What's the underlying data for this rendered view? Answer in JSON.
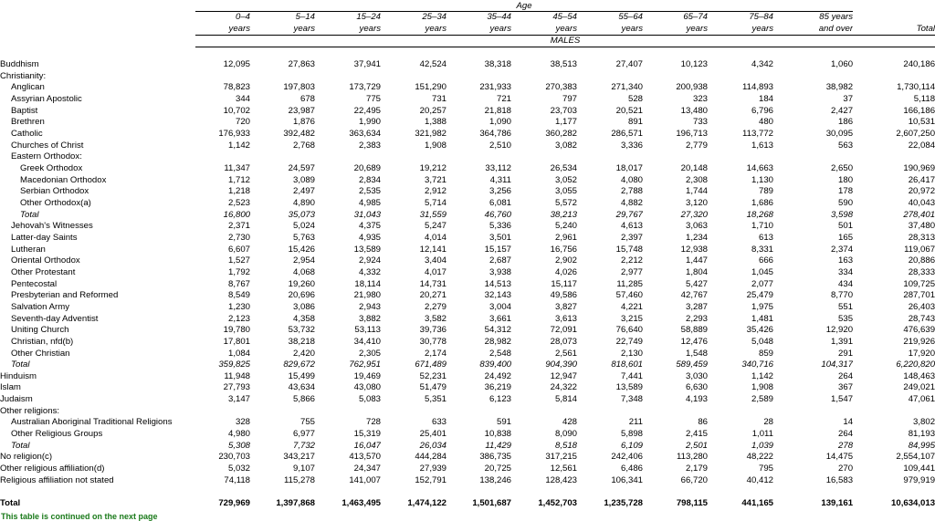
{
  "header": {
    "age_label": "Age",
    "males_label": "MALES",
    "columns": [
      {
        "line1": "0–4",
        "line2": "years"
      },
      {
        "line1": "5–14",
        "line2": "years"
      },
      {
        "line1": "15–24",
        "line2": "years"
      },
      {
        "line1": "25–34",
        "line2": "years"
      },
      {
        "line1": "35–44",
        "line2": "years"
      },
      {
        "line1": "45–54",
        "line2": "years"
      },
      {
        "line1": "55–64",
        "line2": "years"
      },
      {
        "line1": "65–74",
        "line2": "years"
      },
      {
        "line1": "75–84",
        "line2": "years"
      },
      {
        "line1": "85 years",
        "line2": "and over"
      },
      {
        "line1": "",
        "line2": "Total"
      }
    ]
  },
  "rows": [
    {
      "label": "Buddhism",
      "indent": 0,
      "style": "normal",
      "values": [
        "12,095",
        "27,863",
        "37,941",
        "42,524",
        "38,318",
        "38,513",
        "27,407",
        "10,123",
        "4,342",
        "1,060",
        "240,186"
      ]
    },
    {
      "label": "Christianity:",
      "indent": 0,
      "style": "normal",
      "values": [
        "",
        "",
        "",
        "",
        "",
        "",
        "",
        "",
        "",
        "",
        ""
      ]
    },
    {
      "label": "Anglican",
      "indent": 1,
      "style": "normal",
      "values": [
        "78,823",
        "197,803",
        "173,729",
        "151,290",
        "231,933",
        "270,383",
        "271,340",
        "200,938",
        "114,893",
        "38,982",
        "1,730,114"
      ]
    },
    {
      "label": "Assyrian Apostolic",
      "indent": 1,
      "style": "normal",
      "values": [
        "344",
        "678",
        "775",
        "731",
        "721",
        "797",
        "528",
        "323",
        "184",
        "37",
        "5,118"
      ]
    },
    {
      "label": "Baptist",
      "indent": 1,
      "style": "normal",
      "values": [
        "10,702",
        "23,987",
        "22,495",
        "20,257",
        "21,818",
        "23,703",
        "20,521",
        "13,480",
        "6,796",
        "2,427",
        "166,186"
      ]
    },
    {
      "label": "Brethren",
      "indent": 1,
      "style": "normal",
      "values": [
        "720",
        "1,876",
        "1,990",
        "1,388",
        "1,090",
        "1,177",
        "891",
        "733",
        "480",
        "186",
        "10,531"
      ]
    },
    {
      "label": "Catholic",
      "indent": 1,
      "style": "normal",
      "values": [
        "176,933",
        "392,482",
        "363,634",
        "321,982",
        "364,786",
        "360,282",
        "286,571",
        "196,713",
        "113,772",
        "30,095",
        "2,607,250"
      ]
    },
    {
      "label": "Churches of Christ",
      "indent": 1,
      "style": "normal",
      "values": [
        "1,142",
        "2,768",
        "2,383",
        "1,908",
        "2,510",
        "3,082",
        "3,336",
        "2,779",
        "1,613",
        "563",
        "22,084"
      ]
    },
    {
      "label": "Eastern Orthodox:",
      "indent": 1,
      "style": "normal",
      "values": [
        "",
        "",
        "",
        "",
        "",
        "",
        "",
        "",
        "",
        "",
        ""
      ]
    },
    {
      "label": "Greek Orthodox",
      "indent": 2,
      "style": "normal",
      "values": [
        "11,347",
        "24,597",
        "20,689",
        "19,212",
        "33,112",
        "26,534",
        "18,017",
        "20,148",
        "14,663",
        "2,650",
        "190,969"
      ]
    },
    {
      "label": "Macedonian Orthodox",
      "indent": 2,
      "style": "normal",
      "values": [
        "1,712",
        "3,089",
        "2,834",
        "3,721",
        "4,311",
        "3,052",
        "4,080",
        "2,308",
        "1,130",
        "180",
        "26,417"
      ]
    },
    {
      "label": "Serbian Orthodox",
      "indent": 2,
      "style": "normal",
      "values": [
        "1,218",
        "2,497",
        "2,535",
        "2,912",
        "3,256",
        "3,055",
        "2,788",
        "1,744",
        "789",
        "178",
        "20,972"
      ]
    },
    {
      "label": "Other Orthodox(a)",
      "indent": 2,
      "style": "normal",
      "values": [
        "2,523",
        "4,890",
        "4,985",
        "5,714",
        "6,081",
        "5,572",
        "4,882",
        "3,120",
        "1,686",
        "590",
        "40,043"
      ]
    },
    {
      "label": "Total",
      "indent": 2,
      "style": "italic",
      "values": [
        "16,800",
        "35,073",
        "31,043",
        "31,559",
        "46,760",
        "38,213",
        "29,767",
        "27,320",
        "18,268",
        "3,598",
        "278,401"
      ]
    },
    {
      "label": "Jehovah's Witnesses",
      "indent": 1,
      "style": "normal",
      "values": [
        "2,371",
        "5,024",
        "4,375",
        "5,247",
        "5,336",
        "5,240",
        "4,613",
        "3,063",
        "1,710",
        "501",
        "37,480"
      ]
    },
    {
      "label": "Latter-day Saints",
      "indent": 1,
      "style": "normal",
      "values": [
        "2,730",
        "5,763",
        "4,935",
        "4,014",
        "3,501",
        "2,961",
        "2,397",
        "1,234",
        "613",
        "165",
        "28,313"
      ]
    },
    {
      "label": "Lutheran",
      "indent": 1,
      "style": "normal",
      "values": [
        "6,607",
        "15,426",
        "13,589",
        "12,141",
        "15,157",
        "16,756",
        "15,748",
        "12,938",
        "8,331",
        "2,374",
        "119,067"
      ]
    },
    {
      "label": "Oriental Orthodox",
      "indent": 1,
      "style": "normal",
      "values": [
        "1,527",
        "2,954",
        "2,924",
        "3,404",
        "2,687",
        "2,902",
        "2,212",
        "1,447",
        "666",
        "163",
        "20,886"
      ]
    },
    {
      "label": "Other Protestant",
      "indent": 1,
      "style": "normal",
      "values": [
        "1,792",
        "4,068",
        "4,332",
        "4,017",
        "3,938",
        "4,026",
        "2,977",
        "1,804",
        "1,045",
        "334",
        "28,333"
      ]
    },
    {
      "label": "Pentecostal",
      "indent": 1,
      "style": "normal",
      "values": [
        "8,767",
        "19,260",
        "18,114",
        "14,731",
        "14,513",
        "15,117",
        "11,285",
        "5,427",
        "2,077",
        "434",
        "109,725"
      ]
    },
    {
      "label": "Presbyterian and Reformed",
      "indent": 1,
      "style": "normal",
      "values": [
        "8,549",
        "20,696",
        "21,980",
        "20,271",
        "32,143",
        "49,586",
        "57,460",
        "42,767",
        "25,479",
        "8,770",
        "287,701"
      ]
    },
    {
      "label": "Salvation Army",
      "indent": 1,
      "style": "normal",
      "values": [
        "1,230",
        "3,086",
        "2,943",
        "2,279",
        "3,004",
        "3,827",
        "4,221",
        "3,287",
        "1,975",
        "551",
        "26,403"
      ]
    },
    {
      "label": "Seventh-day Adventist",
      "indent": 1,
      "style": "normal",
      "values": [
        "2,123",
        "4,358",
        "3,882",
        "3,582",
        "3,661",
        "3,613",
        "3,215",
        "2,293",
        "1,481",
        "535",
        "28,743"
      ]
    },
    {
      "label": "Uniting Church",
      "indent": 1,
      "style": "normal",
      "values": [
        "19,780",
        "53,732",
        "53,113",
        "39,736",
        "54,312",
        "72,091",
        "76,640",
        "58,889",
        "35,426",
        "12,920",
        "476,639"
      ]
    },
    {
      "label": "Christian, nfd(b)",
      "indent": 1,
      "style": "normal",
      "values": [
        "17,801",
        "38,218",
        "34,410",
        "30,778",
        "28,982",
        "28,073",
        "22,749",
        "12,476",
        "5,048",
        "1,391",
        "219,926"
      ]
    },
    {
      "label": "Other Christian",
      "indent": 1,
      "style": "normal",
      "values": [
        "1,084",
        "2,420",
        "2,305",
        "2,174",
        "2,548",
        "2,561",
        "2,130",
        "1,548",
        "859",
        "291",
        "17,920"
      ]
    },
    {
      "label": "Total",
      "indent": 1,
      "style": "italic",
      "values": [
        "359,825",
        "829,672",
        "762,951",
        "671,489",
        "839,400",
        "904,390",
        "818,601",
        "589,459",
        "340,716",
        "104,317",
        "6,220,820"
      ]
    },
    {
      "label": "Hinduism",
      "indent": 0,
      "style": "normal",
      "values": [
        "11,948",
        "15,499",
        "19,469",
        "52,231",
        "24,492",
        "12,947",
        "7,441",
        "3,030",
        "1,142",
        "264",
        "148,463"
      ]
    },
    {
      "label": "Islam",
      "indent": 0,
      "style": "normal",
      "values": [
        "27,793",
        "43,634",
        "43,080",
        "51,479",
        "36,219",
        "24,322",
        "13,589",
        "6,630",
        "1,908",
        "367",
        "249,021"
      ]
    },
    {
      "label": "Judaism",
      "indent": 0,
      "style": "normal",
      "values": [
        "3,147",
        "5,866",
        "5,083",
        "5,351",
        "6,123",
        "5,814",
        "7,348",
        "4,193",
        "2,589",
        "1,547",
        "47,061"
      ]
    },
    {
      "label": "Other religions:",
      "indent": 0,
      "style": "normal",
      "values": [
        "",
        "",
        "",
        "",
        "",
        "",
        "",
        "",
        "",
        "",
        ""
      ]
    },
    {
      "label": "Australian Aboriginal Traditional Religions",
      "indent": 1,
      "style": "normal",
      "values": [
        "328",
        "755",
        "728",
        "633",
        "591",
        "428",
        "211",
        "86",
        "28",
        "14",
        "3,802"
      ]
    },
    {
      "label": "Other Religious Groups",
      "indent": 1,
      "style": "normal",
      "values": [
        "4,980",
        "6,977",
        "15,319",
        "25,401",
        "10,838",
        "8,090",
        "5,898",
        "2,415",
        "1,011",
        "264",
        "81,193"
      ]
    },
    {
      "label": "Total",
      "indent": 1,
      "style": "italic",
      "values": [
        "5,308",
        "7,732",
        "16,047",
        "26,034",
        "11,429",
        "8,518",
        "6,109",
        "2,501",
        "1,039",
        "278",
        "84,995"
      ]
    },
    {
      "label": "No religion(c)",
      "indent": 0,
      "style": "normal",
      "values": [
        "230,703",
        "343,217",
        "413,570",
        "444,284",
        "386,735",
        "317,215",
        "242,406",
        "113,280",
        "48,222",
        "14,475",
        "2,554,107"
      ]
    },
    {
      "label": "Other religious affiliation(d)",
      "indent": 0,
      "style": "normal",
      "values": [
        "5,032",
        "9,107",
        "24,347",
        "27,939",
        "20,725",
        "12,561",
        "6,486",
        "2,179",
        "795",
        "270",
        "109,441"
      ]
    },
    {
      "label": "Religious affiliation not stated",
      "indent": 0,
      "style": "normal",
      "values": [
        "74,118",
        "115,278",
        "141,007",
        "152,791",
        "138,246",
        "128,423",
        "106,341",
        "66,720",
        "40,412",
        "16,583",
        "979,919"
      ]
    }
  ],
  "total_row": {
    "label": "Total",
    "values": [
      "729,969",
      "1,397,868",
      "1,463,495",
      "1,474,122",
      "1,501,687",
      "1,452,703",
      "1,235,728",
      "798,115",
      "441,165",
      "139,161",
      "10,634,013"
    ]
  },
  "footer_note": "This table is continued on the next page"
}
